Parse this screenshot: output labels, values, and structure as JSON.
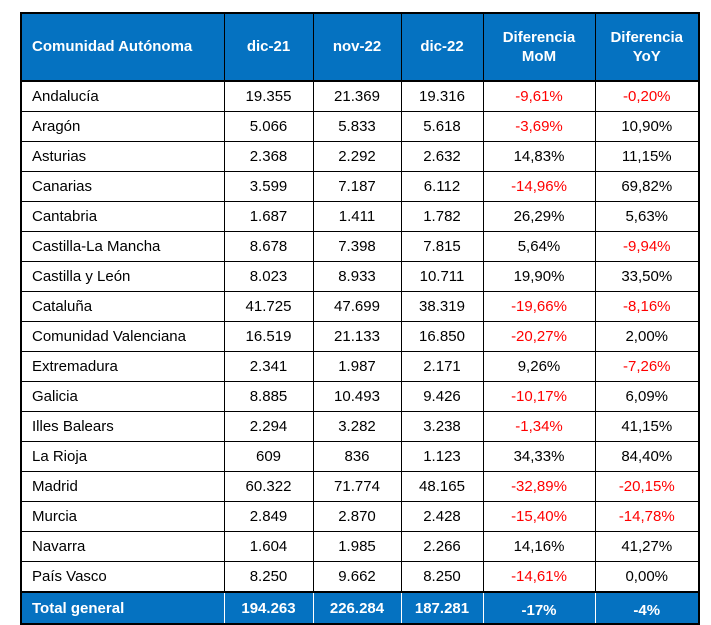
{
  "colors": {
    "header_bg": "#0572c1",
    "header_text": "#ffffff",
    "negative_text": "#ff0000",
    "positive_text": "#000000",
    "border": "#000000",
    "total_bg": "#0572c1",
    "total_text": "#ffffff"
  },
  "chart_data": {
    "type": "table",
    "columns": [
      "Comunidad Autónoma",
      "dic-21",
      "nov-22",
      "dic-22",
      "Diferencia MoM",
      "Diferencia YoY"
    ],
    "rows": [
      {
        "name": "Andalucía",
        "dic21": "19.355",
        "nov22": "21.369",
        "dic22": "19.316",
        "mom": "-9,61%",
        "yoy": "-0,20%"
      },
      {
        "name": "Aragón",
        "dic21": "5.066",
        "nov22": "5.833",
        "dic22": "5.618",
        "mom": "-3,69%",
        "yoy": "10,90%"
      },
      {
        "name": "Asturias",
        "dic21": "2.368",
        "nov22": "2.292",
        "dic22": "2.632",
        "mom": "14,83%",
        "yoy": "11,15%"
      },
      {
        "name": "Canarias",
        "dic21": "3.599",
        "nov22": "7.187",
        "dic22": "6.112",
        "mom": "-14,96%",
        "yoy": "69,82%"
      },
      {
        "name": "Cantabria",
        "dic21": "1.687",
        "nov22": "1.411",
        "dic22": "1.782",
        "mom": "26,29%",
        "yoy": "5,63%"
      },
      {
        "name": "Castilla-La Mancha",
        "dic21": "8.678",
        "nov22": "7.398",
        "dic22": "7.815",
        "mom": "5,64%",
        "yoy": "-9,94%"
      },
      {
        "name": "Castilla y León",
        "dic21": "8.023",
        "nov22": "8.933",
        "dic22": "10.711",
        "mom": "19,90%",
        "yoy": "33,50%"
      },
      {
        "name": "Cataluña",
        "dic21": "41.725",
        "nov22": "47.699",
        "dic22": "38.319",
        "mom": "-19,66%",
        "yoy": "-8,16%"
      },
      {
        "name": "Comunidad Valenciana",
        "dic21": "16.519",
        "nov22": "21.133",
        "dic22": "16.850",
        "mom": "-20,27%",
        "yoy": "2,00%"
      },
      {
        "name": "Extremadura",
        "dic21": "2.341",
        "nov22": "1.987",
        "dic22": "2.171",
        "mom": "9,26%",
        "yoy": "-7,26%"
      },
      {
        "name": "Galicia",
        "dic21": "8.885",
        "nov22": "10.493",
        "dic22": "9.426",
        "mom": "-10,17%",
        "yoy": "6,09%"
      },
      {
        "name": "Illes Balears",
        "dic21": "2.294",
        "nov22": "3.282",
        "dic22": "3.238",
        "mom": "-1,34%",
        "yoy": "41,15%"
      },
      {
        "name": "La Rioja",
        "dic21": "609",
        "nov22": "836",
        "dic22": "1.123",
        "mom": "34,33%",
        "yoy": "84,40%"
      },
      {
        "name": "Madrid",
        "dic21": "60.322",
        "nov22": "71.774",
        "dic22": "48.165",
        "mom": "-32,89%",
        "yoy": "-20,15%"
      },
      {
        "name": "Murcia",
        "dic21": "2.849",
        "nov22": "2.870",
        "dic22": "2.428",
        "mom": "-15,40%",
        "yoy": "-14,78%"
      },
      {
        "name": "Navarra",
        "dic21": "1.604",
        "nov22": "1.985",
        "dic22": "2.266",
        "mom": "14,16%",
        "yoy": "41,27%"
      },
      {
        "name": "País Vasco",
        "dic21": "8.250",
        "nov22": "9.662",
        "dic22": "8.250",
        "mom": "-14,61%",
        "yoy": "0,00%"
      }
    ],
    "total": {
      "name": "Total general",
      "dic21": "194.263",
      "nov22": "226.284",
      "dic22": "187.281",
      "mom": "-17%",
      "yoy": "-4%"
    }
  }
}
